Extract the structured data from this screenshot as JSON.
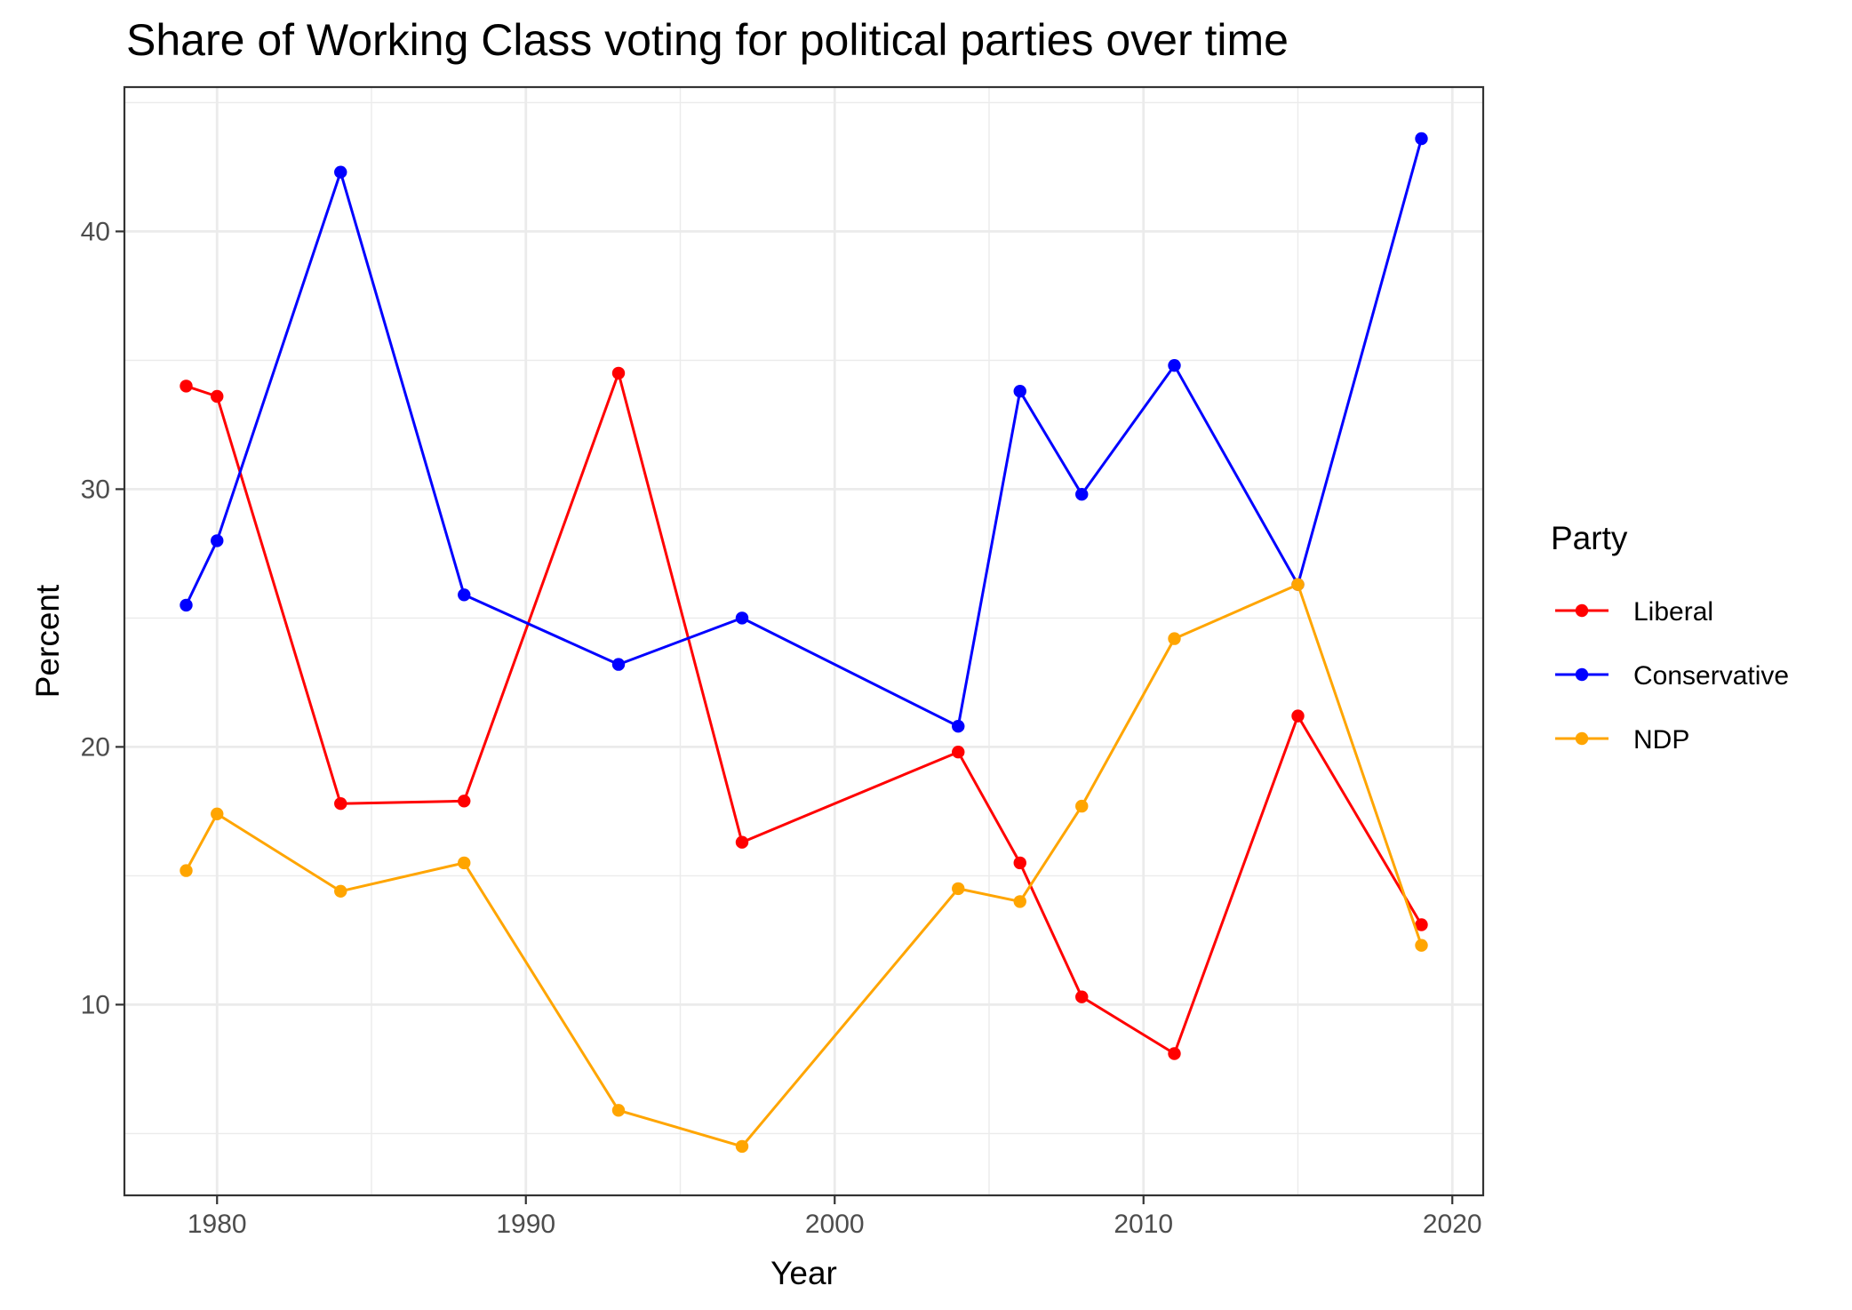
{
  "chart_data": {
    "type": "line",
    "title": "Share of Working Class voting for political parties over time",
    "xlabel": "Year",
    "ylabel": "Percent",
    "xlim": [
      1977,
      2021
    ],
    "ylim": [
      2.6,
      45.6
    ],
    "x_ticks": [
      1980,
      1990,
      2000,
      2010,
      2020
    ],
    "y_ticks": [
      10,
      20,
      30,
      40
    ],
    "grid": true,
    "legend": {
      "title": "Party",
      "position": "right"
    },
    "series": [
      {
        "name": "Liberal",
        "color": "#ff0000",
        "points": [
          [
            1979,
            34.0
          ],
          [
            1980,
            33.6
          ],
          [
            1984,
            17.8
          ],
          [
            1988,
            17.9
          ],
          [
            1993,
            34.5
          ],
          [
            1997,
            16.3
          ],
          [
            2004,
            19.8
          ],
          [
            2006,
            15.5
          ],
          [
            2008,
            10.3
          ],
          [
            2011,
            8.1
          ],
          [
            2015,
            21.2
          ],
          [
            2019,
            13.1
          ]
        ]
      },
      {
        "name": "Conservative",
        "color": "#0000ff",
        "points": [
          [
            1979,
            25.5
          ],
          [
            1980,
            28.0
          ],
          [
            1984,
            42.3
          ],
          [
            1988,
            25.9
          ],
          [
            1993,
            23.2
          ],
          [
            1997,
            25.0
          ],
          [
            2004,
            20.8
          ],
          [
            2006,
            33.8
          ],
          [
            2008,
            29.8
          ],
          [
            2011,
            34.8
          ],
          [
            2015,
            26.3
          ],
          [
            2019,
            43.6
          ]
        ]
      },
      {
        "name": "NDP",
        "color": "#ffa500",
        "points": [
          [
            1979,
            15.2
          ],
          [
            1980,
            17.4
          ],
          [
            1984,
            14.4
          ],
          [
            1988,
            15.5
          ],
          [
            1993,
            5.9
          ],
          [
            1997,
            4.5
          ],
          [
            2004,
            14.5
          ],
          [
            2006,
            14.0
          ],
          [
            2008,
            17.7
          ],
          [
            2011,
            24.2
          ],
          [
            2015,
            26.3
          ],
          [
            2019,
            12.3
          ]
        ]
      }
    ]
  }
}
